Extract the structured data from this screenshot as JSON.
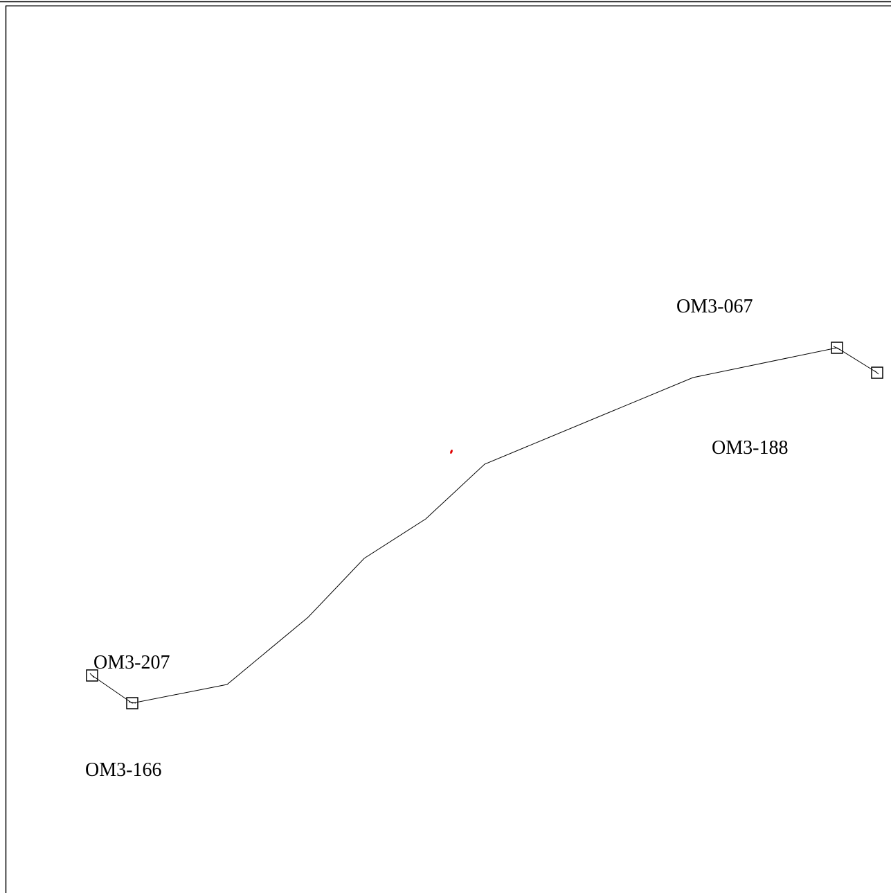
{
  "diagram": {
    "stations": [
      {
        "id": "OM3-207",
        "label": "OM3-207"
      },
      {
        "id": "OM3-166",
        "label": "OM3-166"
      },
      {
        "id": "OM3-067",
        "label": "OM3-067"
      },
      {
        "id": "OM3-188",
        "label": "OM3-188"
      }
    ],
    "colors": {
      "line": "#000000",
      "marker": "#000000",
      "frame": "#000000",
      "highlight_point": "#e00000",
      "background": "#ffffff"
    }
  }
}
